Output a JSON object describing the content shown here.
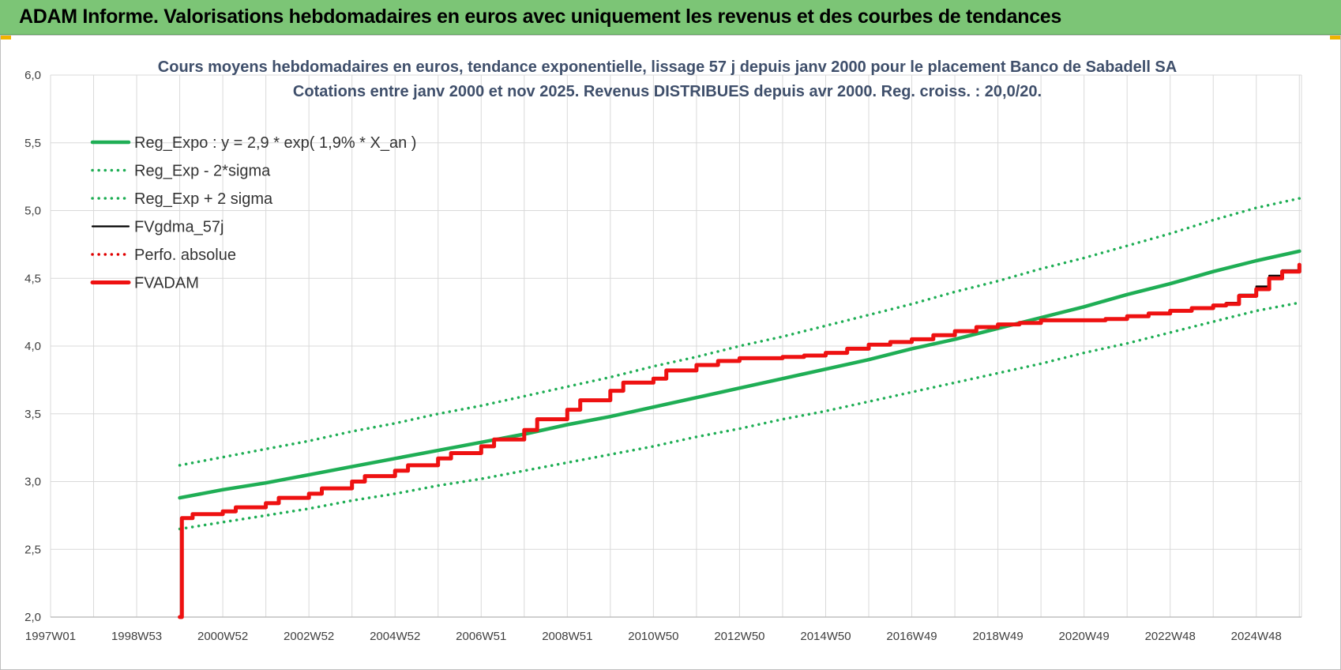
{
  "banner": {
    "title": "ADAM Informe. Valorisations hebdomadaires en euros avec uniquement les revenus et des courbes de tendances"
  },
  "colors": {
    "banner_bg": "#7cc576",
    "reg_expo": "#1fae55",
    "sigma": "#1fae55",
    "fvgdma": "#000000",
    "perfo": "#e00000",
    "fvadam": "#ee1111",
    "grid": "#d9d9d9"
  },
  "chart_data": {
    "type": "line",
    "title": "Cours moyens hebdomadaires en euros, tendance exponentielle, lissage 57 j depuis janv 2000 pour le placement Banco de Sabadell SA",
    "subtitle": "Cotations entre janv 2000 et nov 2025. Revenus DISTRIBUES depuis avr 2000. Reg. croiss. : 20,0/20.",
    "xlabel": "",
    "ylabel": "",
    "ylim": [
      2.0,
      6.0
    ],
    "xlim": [
      1997.0,
      2026.05
    ],
    "grid": true,
    "legend_position": "top-left",
    "y_ticks": [
      "2,0",
      "2,5",
      "3,0",
      "3,5",
      "4,0",
      "4,5",
      "5,0",
      "5,5",
      "6,0"
    ],
    "y_tick_values": [
      2.0,
      2.5,
      3.0,
      3.5,
      4.0,
      4.5,
      5.0,
      5.5,
      6.0
    ],
    "x_ticks": [
      "1997W01",
      "1998W53",
      "2000W52",
      "2002W52",
      "2004W52",
      "2006W51",
      "2008W51",
      "2010W50",
      "2012W50",
      "2014W50",
      "2016W49",
      "2018W49",
      "2020W49",
      "2022W48",
      "2024W48"
    ],
    "x_tick_values": [
      1997.0,
      1999.0,
      2001.0,
      2003.0,
      2005.0,
      2007.0,
      2009.0,
      2011.0,
      2013.0,
      2015.0,
      2017.0,
      2019.0,
      2021.0,
      2023.0,
      2025.0
    ],
    "series": [
      {
        "name": "Reg_Expo : y = 2,9 * exp( 1,9% *  X_an )",
        "style": "solid-thick",
        "color": "#1fae55",
        "x": [
          2000.0,
          2001.0,
          2002.0,
          2003.0,
          2004.0,
          2005.0,
          2006.0,
          2007.0,
          2008.0,
          2009.0,
          2010.0,
          2011.0,
          2012.0,
          2013.0,
          2014.0,
          2015.0,
          2016.0,
          2017.0,
          2018.0,
          2019.0,
          2020.0,
          2021.0,
          2022.0,
          2023.0,
          2024.0,
          2025.0,
          2026.0
        ],
        "y": [
          2.88,
          2.94,
          2.99,
          3.05,
          3.11,
          3.17,
          3.23,
          3.29,
          3.35,
          3.42,
          3.48,
          3.55,
          3.62,
          3.69,
          3.76,
          3.83,
          3.9,
          3.98,
          4.05,
          4.13,
          4.21,
          4.29,
          4.38,
          4.46,
          4.55,
          4.63,
          4.7
        ]
      },
      {
        "name": "Reg_Exp - 2*sigma",
        "style": "dotted",
        "color": "#1fae55",
        "x": [
          2000.0,
          2001.0,
          2002.0,
          2003.0,
          2004.0,
          2005.0,
          2006.0,
          2007.0,
          2008.0,
          2009.0,
          2010.0,
          2011.0,
          2012.0,
          2013.0,
          2014.0,
          2015.0,
          2016.0,
          2017.0,
          2018.0,
          2019.0,
          2020.0,
          2021.0,
          2022.0,
          2023.0,
          2024.0,
          2025.0,
          2026.0
        ],
        "y": [
          2.65,
          2.7,
          2.75,
          2.8,
          2.86,
          2.91,
          2.97,
          3.02,
          3.08,
          3.14,
          3.2,
          3.26,
          3.33,
          3.39,
          3.46,
          3.52,
          3.59,
          3.66,
          3.73,
          3.8,
          3.87,
          3.95,
          4.02,
          4.1,
          4.18,
          4.26,
          4.32
        ]
      },
      {
        "name": "Reg_Exp + 2 sigma",
        "style": "dotted",
        "color": "#1fae55",
        "x": [
          2000.0,
          2001.0,
          2002.0,
          2003.0,
          2004.0,
          2005.0,
          2006.0,
          2007.0,
          2008.0,
          2009.0,
          2010.0,
          2011.0,
          2012.0,
          2013.0,
          2014.0,
          2015.0,
          2016.0,
          2017.0,
          2018.0,
          2019.0,
          2020.0,
          2021.0,
          2022.0,
          2023.0,
          2024.0,
          2025.0,
          2026.0
        ],
        "y": [
          3.12,
          3.18,
          3.24,
          3.3,
          3.37,
          3.43,
          3.5,
          3.56,
          3.63,
          3.7,
          3.77,
          3.85,
          3.92,
          4.0,
          4.07,
          4.15,
          4.23,
          4.31,
          4.4,
          4.48,
          4.57,
          4.65,
          4.74,
          4.83,
          4.93,
          5.02,
          5.09
        ]
      },
      {
        "name": "FVgdma_57j",
        "style": "solid",
        "color": "#000000",
        "x": [
          2000.0,
          2000.05,
          2000.3,
          2001.0,
          2001.3,
          2002.0,
          2002.3,
          2003.0,
          2003.3,
          2004.0,
          2004.3,
          2005.0,
          2005.3,
          2006.0,
          2006.3,
          2007.0,
          2007.3,
          2008.0,
          2008.3,
          2009.0,
          2009.3,
          2010.0,
          2010.3,
          2011.0,
          2011.3,
          2012.0,
          2012.5,
          2013.0,
          2014.0,
          2014.5,
          2015.0,
          2015.5,
          2016.0,
          2016.5,
          2017.0,
          2017.5,
          2018.0,
          2018.5,
          2019.0,
          2019.5,
          2020.0,
          2021.0,
          2021.5,
          2022.0,
          2022.5,
          2023.0,
          2023.5,
          2024.0,
          2024.3,
          2024.6,
          2025.0,
          2025.3,
          2025.6,
          2026.0
        ],
        "y": [
          2.0,
          2.73,
          2.76,
          2.78,
          2.81,
          2.84,
          2.88,
          2.91,
          2.95,
          3.0,
          3.04,
          3.08,
          3.12,
          3.17,
          3.21,
          3.26,
          3.31,
          3.38,
          3.46,
          3.53,
          3.6,
          3.67,
          3.73,
          3.76,
          3.82,
          3.86,
          3.89,
          3.91,
          3.92,
          3.93,
          3.95,
          3.98,
          4.01,
          4.03,
          4.05,
          4.08,
          4.11,
          4.14,
          4.16,
          4.17,
          4.19,
          4.19,
          4.2,
          4.22,
          4.24,
          4.26,
          4.28,
          4.3,
          4.32,
          4.38,
          4.44,
          4.52,
          4.56,
          4.6
        ]
      },
      {
        "name": "Perfo. absolue",
        "style": "dotted",
        "color": "#e00000",
        "x": [],
        "y": []
      },
      {
        "name": "FVADAM",
        "style": "solid-thick",
        "color": "#ee1111",
        "x": [
          2000.0,
          2000.05,
          2000.3,
          2001.0,
          2001.3,
          2002.0,
          2002.3,
          2003.0,
          2003.3,
          2004.0,
          2004.3,
          2005.0,
          2005.3,
          2006.0,
          2006.3,
          2007.0,
          2007.3,
          2008.0,
          2008.3,
          2009.0,
          2009.3,
          2010.0,
          2010.3,
          2011.0,
          2011.3,
          2012.0,
          2012.5,
          2013.0,
          2014.0,
          2014.5,
          2015.0,
          2015.5,
          2016.0,
          2016.5,
          2017.0,
          2017.5,
          2018.0,
          2018.5,
          2019.0,
          2019.5,
          2020.0,
          2021.0,
          2021.5,
          2022.0,
          2022.5,
          2023.0,
          2023.5,
          2024.0,
          2024.3,
          2024.6,
          2025.0,
          2025.3,
          2025.6,
          2026.0
        ],
        "y": [
          2.0,
          2.73,
          2.76,
          2.78,
          2.81,
          2.84,
          2.88,
          2.91,
          2.95,
          3.0,
          3.04,
          3.08,
          3.12,
          3.17,
          3.21,
          3.26,
          3.31,
          3.38,
          3.46,
          3.53,
          3.6,
          3.67,
          3.73,
          3.76,
          3.82,
          3.86,
          3.89,
          3.91,
          3.92,
          3.93,
          3.95,
          3.98,
          4.01,
          4.03,
          4.05,
          4.08,
          4.11,
          4.14,
          4.16,
          4.17,
          4.19,
          4.19,
          4.2,
          4.22,
          4.24,
          4.26,
          4.28,
          4.3,
          4.31,
          4.37,
          4.42,
          4.5,
          4.55,
          4.6
        ]
      }
    ]
  }
}
